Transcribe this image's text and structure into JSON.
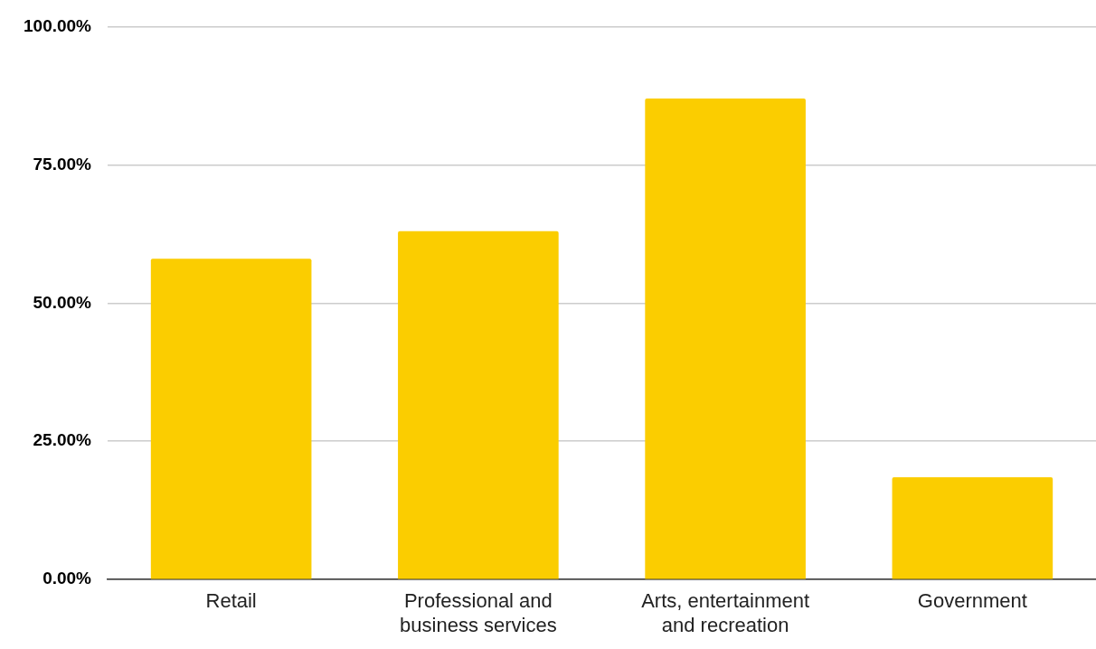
{
  "chart_data": {
    "type": "bar",
    "categories": [
      "Retail",
      "Professional and business services",
      "Arts, entertainment and recreation",
      "Government"
    ],
    "values": [
      58,
      63,
      87,
      18.5
    ],
    "color": "#fbcd00",
    "ylim": [
      0,
      100
    ],
    "yticks": [
      {
        "value": 0,
        "label": "0.00%"
      },
      {
        "value": 25,
        "label": "25.00%"
      },
      {
        "value": 50,
        "label": "50.00%"
      },
      {
        "value": 75,
        "label": "75.00%"
      },
      {
        "value": 100,
        "label": "100.00%"
      }
    ],
    "grid": "y",
    "legend": false
  }
}
